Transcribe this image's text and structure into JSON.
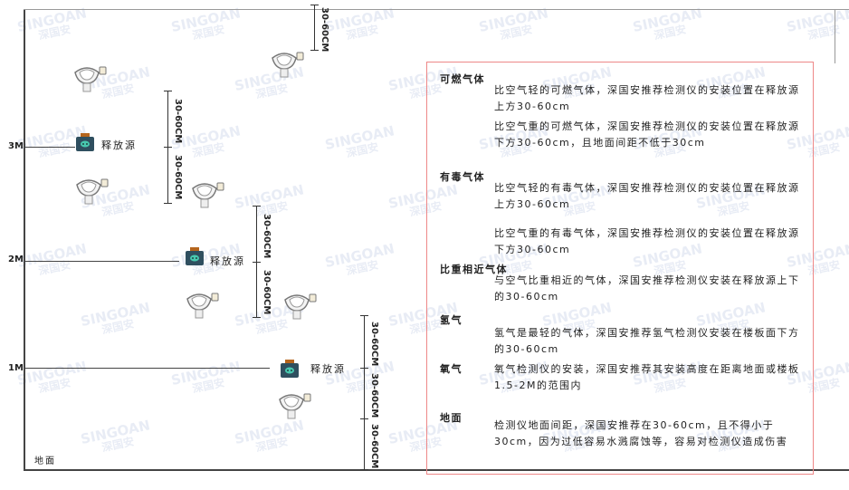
{
  "watermark": "SINGOAN 深国安",
  "levels": [
    "3M",
    "2M",
    "1M"
  ],
  "ground": "地面",
  "source_label": "释放源",
  "dimension_label": "30-60CM",
  "colors": {
    "panel_border": "#e88888",
    "source_body": "#2f4f5f",
    "source_cap": "#b5651d",
    "source_face": "#48c9b0"
  },
  "panel": {
    "sections": [
      {
        "title": "可燃气体",
        "paragraphs": [
          "比空气轻的可燃气体，深国安推荐检测仪的安装位置在释放源上方30-60cm",
          "比空气重的可燃气体，深国安推荐检测仪的安装位置在释放源下方30-60cm，且地面间距不低于30cm"
        ]
      },
      {
        "title": "有毒气体",
        "paragraphs": [
          "比空气轻的有毒气体，深国安推荐检测仪的安装位置在释放源上方30-60cm",
          "比空气重的有毒气体，深国安推荐检测仪的安装位置在释放源下方30-60cm"
        ]
      },
      {
        "title": "比重相近气体",
        "paragraphs": [
          "与空气比重相近的气体，深国安推荐检测仪安装在释放源上下的30-60cm"
        ]
      },
      {
        "title": "氢气",
        "paragraphs": [
          "氢气是最轻的气体，深国安推荐氢气检测仪安装在楼板面下方的30-60cm"
        ]
      },
      {
        "title": "氧气",
        "paragraphs": [
          "氧气检测仪的安装，深国安推荐其安装高度在距离地面或楼板1.5-2M的范围内"
        ]
      },
      {
        "title": "地面",
        "paragraphs": [
          "检测仪地面间距，深国安推荐在30-60cm，且不得小于30cm，因为过低容易水溅腐蚀等，容易对检测仪造成伤害"
        ]
      }
    ]
  }
}
